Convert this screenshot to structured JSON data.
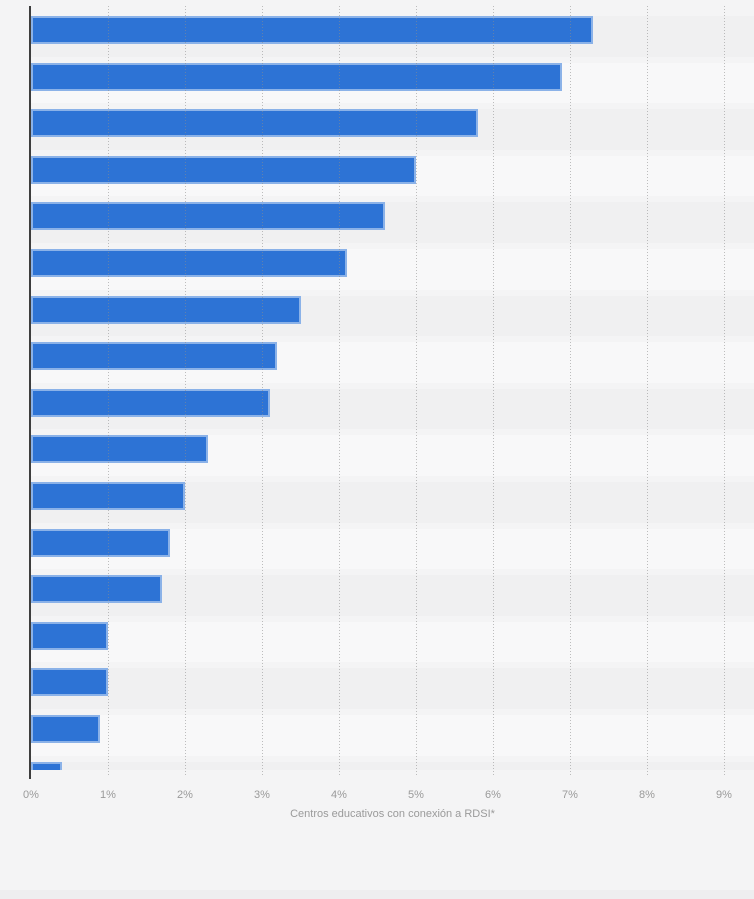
{
  "page": {
    "background": "#f4f4f5",
    "stripe_odd": "#f0f0f1",
    "stripe_even": "#f8f8f9",
    "axis_line_color": "#3d3d3d",
    "tick_label_color": "#9a9a9a"
  },
  "chart_data": {
    "type": "bar",
    "orientation": "horizontal",
    "title": "",
    "xlabel": "Centros educativos con conexión a RDSI*",
    "ylabel": "",
    "unit": "%",
    "values": [
      7.3,
      6.9,
      5.8,
      5.0,
      4.6,
      4.1,
      3.5,
      3.2,
      3.1,
      2.3,
      2.0,
      1.8,
      1.7,
      1.0,
      1.0,
      0.9,
      0.4,
      0,
      0
    ],
    "xlim": [
      0,
      9.4
    ],
    "x_ticks": [
      "0%",
      "1%",
      "2%",
      "3%",
      "4%",
      "5%",
      "6%",
      "7%",
      "8%",
      "9%"
    ],
    "grid": "vertical-dotted",
    "legend": "none",
    "bar_color": "#2d73d5",
    "bar_border_color": "rgba(255,255,255,0.45)"
  }
}
